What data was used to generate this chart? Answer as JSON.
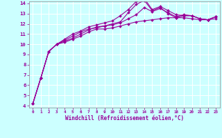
{
  "x": [
    0,
    1,
    2,
    3,
    4,
    5,
    6,
    7,
    8,
    9,
    10,
    11,
    12,
    13,
    14,
    15,
    16,
    17,
    18,
    19,
    20,
    21,
    22,
    23
  ],
  "line1": [
    4.2,
    6.7,
    9.3,
    10.0,
    10.2,
    10.5,
    10.8,
    11.2,
    11.5,
    11.5,
    11.6,
    11.8,
    12.0,
    12.2,
    12.3,
    12.4,
    12.5,
    12.6,
    12.6,
    12.6,
    12.5,
    12.4,
    12.4,
    12.5
  ],
  "line2": [
    4.2,
    6.7,
    9.3,
    10.0,
    10.3,
    10.6,
    11.0,
    11.4,
    11.7,
    11.8,
    12.0,
    12.2,
    13.1,
    13.9,
    14.3,
    13.3,
    13.6,
    13.0,
    12.6,
    12.8,
    12.8,
    12.5,
    12.4,
    12.7
  ],
  "line3": [
    4.2,
    6.7,
    9.3,
    10.0,
    10.4,
    10.8,
    11.2,
    11.5,
    11.6,
    11.8,
    11.9,
    12.1,
    12.5,
    12.9,
    13.6,
    13.2,
    13.5,
    13.1,
    12.7,
    12.9,
    12.8,
    12.5,
    12.4,
    12.7
  ],
  "line4": [
    4.2,
    6.7,
    9.3,
    10.0,
    10.5,
    11.0,
    11.3,
    11.7,
    11.9,
    12.1,
    12.3,
    12.8,
    13.4,
    14.2,
    14.5,
    13.4,
    13.7,
    13.3,
    12.9,
    12.8,
    12.8,
    12.5,
    12.4,
    12.7
  ],
  "line_color": "#990099",
  "bg_color": "#ccffff",
  "grid_color": "#aadddd",
  "xlabel": "Windchill (Refroidissement éolien,°C)",
  "ylim": [
    4,
    14
  ],
  "xlim": [
    -0.5,
    23.5
  ],
  "yticks": [
    4,
    5,
    6,
    7,
    8,
    9,
    10,
    11,
    12,
    13,
    14
  ],
  "xticks": [
    0,
    1,
    2,
    3,
    4,
    5,
    6,
    7,
    8,
    9,
    10,
    11,
    12,
    13,
    14,
    15,
    16,
    17,
    18,
    19,
    20,
    21,
    22,
    23
  ],
  "xlabel_fontsize": 5.5,
  "xtick_fontsize": 4.2,
  "ytick_fontsize": 5.2,
  "marker_size": 2.0,
  "line_width": 0.8
}
